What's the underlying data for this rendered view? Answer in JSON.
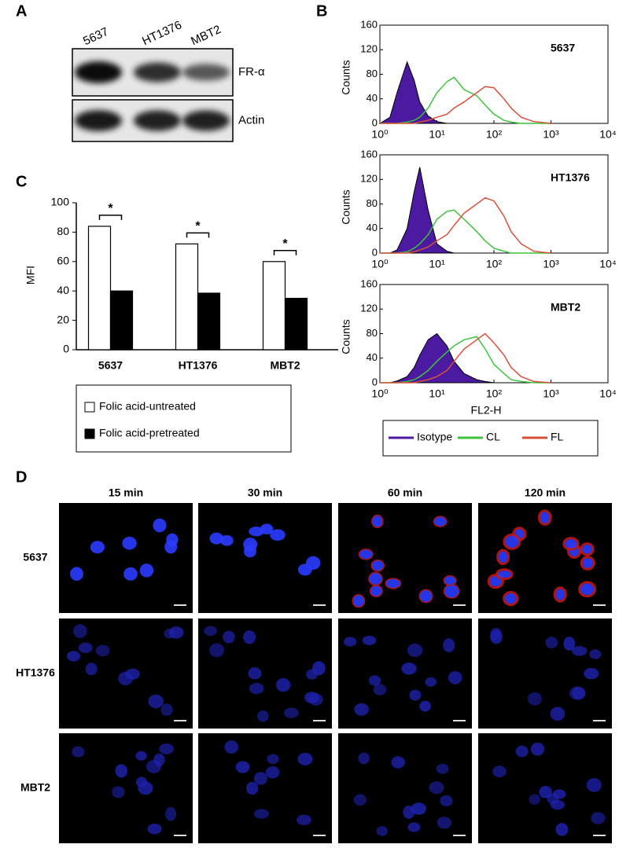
{
  "panel_labels": [
    "A",
    "B",
    "C",
    "D"
  ],
  "blot": {
    "lanes": [
      "5637",
      "HT1376",
      "MBT2"
    ],
    "bands": [
      "FR-α",
      "Actin"
    ]
  },
  "flow_legend": [
    {
      "name": "Isotype",
      "color": "#4b1aa0"
    },
    {
      "name": "CL",
      "color": "#3cc43c"
    },
    {
      "name": "FL",
      "color": "#d9503a"
    }
  ],
  "chart_data": [
    {
      "type": "bar",
      "ylabel": "MFI",
      "categories": [
        "5637",
        "HT1376",
        "MBT2"
      ],
      "series": [
        {
          "name": "Folic acid-untreated",
          "color": "#ffffff",
          "values": [
            84,
            72,
            60
          ]
        },
        {
          "name": "Folic acid-pretreated",
          "color": "#000000",
          "values": [
            40,
            38.5,
            35
          ]
        }
      ],
      "annotations": [
        "*",
        "*",
        "*"
      ],
      "ylim": [
        0,
        100
      ],
      "yticks": [
        0,
        20,
        40,
        60,
        80,
        100
      ]
    },
    {
      "type": "histogram-line",
      "title": "5637",
      "ylabel": "Counts",
      "log_x": true,
      "x": [
        1,
        1.5,
        2,
        3,
        4,
        5,
        7,
        10,
        15,
        20,
        30,
        50,
        70,
        100,
        150,
        200,
        300,
        500,
        1000
      ],
      "series": [
        {
          "color": "#4b1aa0",
          "area": true,
          "values": [
            0,
            10,
            50,
            100,
            70,
            35,
            12,
            3,
            0,
            0,
            0,
            0,
            0,
            0,
            0,
            0,
            0,
            0,
            0
          ]
        },
        {
          "color": "#3cc43c",
          "values": [
            0,
            0,
            0,
            2,
            5,
            10,
            25,
            50,
            68,
            75,
            55,
            45,
            30,
            15,
            5,
            2,
            0,
            0,
            0
          ]
        },
        {
          "color": "#d9503a",
          "values": [
            0,
            0,
            0,
            0,
            0,
            2,
            5,
            10,
            15,
            25,
            35,
            50,
            60,
            58,
            40,
            25,
            10,
            3,
            0
          ]
        }
      ],
      "xlim": [
        1,
        10000
      ],
      "xticks": [
        {
          "value": 1,
          "label": "10⁰"
        },
        {
          "value": 10,
          "label": "10¹"
        },
        {
          "value": 100,
          "label": "10²"
        },
        {
          "value": 1000,
          "label": "10³"
        },
        {
          "value": 10000,
          "label": "10⁴"
        }
      ],
      "ylim": [
        0,
        160
      ],
      "yticks": [
        0,
        40,
        80,
        120,
        160
      ]
    },
    {
      "type": "histogram-line",
      "title": "HT1376",
      "ylabel": "Counts",
      "log_x": true,
      "x": [
        1,
        1.5,
        2,
        3,
        4,
        5,
        7,
        10,
        15,
        20,
        30,
        50,
        70,
        100,
        150,
        200,
        300,
        500,
        1000
      ],
      "series": [
        {
          "color": "#4b1aa0",
          "area": true,
          "values": [
            0,
            0,
            5,
            40,
            100,
            140,
            70,
            15,
            3,
            0,
            0,
            0,
            0,
            0,
            0,
            0,
            0,
            0,
            0
          ]
        },
        {
          "color": "#3cc43c",
          "values": [
            0,
            0,
            0,
            2,
            8,
            15,
            30,
            55,
            68,
            70,
            55,
            35,
            20,
            8,
            3,
            0,
            0,
            0,
            0
          ]
        },
        {
          "color": "#d9503a",
          "values": [
            0,
            0,
            0,
            0,
            2,
            5,
            10,
            20,
            30,
            45,
            65,
            80,
            90,
            85,
            60,
            35,
            15,
            3,
            0
          ]
        }
      ],
      "xlim": [
        1,
        10000
      ],
      "xticks": [
        {
          "value": 1,
          "label": "10⁰"
        },
        {
          "value": 10,
          "label": "10¹"
        },
        {
          "value": 100,
          "label": "10²"
        },
        {
          "value": 1000,
          "label": "10³"
        },
        {
          "value": 10000,
          "label": "10⁴"
        }
      ],
      "ylim": [
        0,
        160
      ],
      "yticks": [
        0,
        40,
        80,
        120,
        160
      ]
    },
    {
      "type": "histogram-line",
      "title": "MBT2",
      "ylabel": "Counts",
      "xlabel": "FL2-H",
      "log_x": true,
      "x": [
        1,
        1.5,
        2,
        3,
        4,
        5,
        7,
        10,
        15,
        20,
        30,
        50,
        70,
        100,
        150,
        200,
        300,
        500,
        1000
      ],
      "series": [
        {
          "color": "#4b1aa0",
          "area": true,
          "values": [
            0,
            0,
            3,
            10,
            25,
            45,
            70,
            80,
            60,
            35,
            15,
            5,
            2,
            0,
            0,
            0,
            0,
            0,
            0
          ]
        },
        {
          "color": "#3cc43c",
          "values": [
            0,
            0,
            0,
            2,
            5,
            10,
            20,
            35,
            50,
            60,
            70,
            75,
            55,
            30,
            15,
            5,
            2,
            0,
            0
          ]
        },
        {
          "color": "#d9503a",
          "values": [
            0,
            0,
            0,
            0,
            0,
            2,
            5,
            10,
            20,
            35,
            55,
            70,
            80,
            65,
            45,
            25,
            10,
            2,
            0
          ]
        }
      ],
      "xlim": [
        1,
        10000
      ],
      "xticks": [
        {
          "value": 1,
          "label": "10⁰"
        },
        {
          "value": 10,
          "label": "10¹"
        },
        {
          "value": 100,
          "label": "10²"
        },
        {
          "value": 1000,
          "label": "10³"
        },
        {
          "value": 10000,
          "label": "10⁴"
        }
      ],
      "ylim": [
        0,
        160
      ],
      "yticks": [
        0,
        40,
        80,
        120,
        160
      ]
    }
  ],
  "microscopy": {
    "timepoints": [
      "15 min",
      "30 min",
      "60 min",
      "120 min"
    ],
    "cell_lines": [
      "5637",
      "HT1376",
      "MBT2"
    ]
  }
}
